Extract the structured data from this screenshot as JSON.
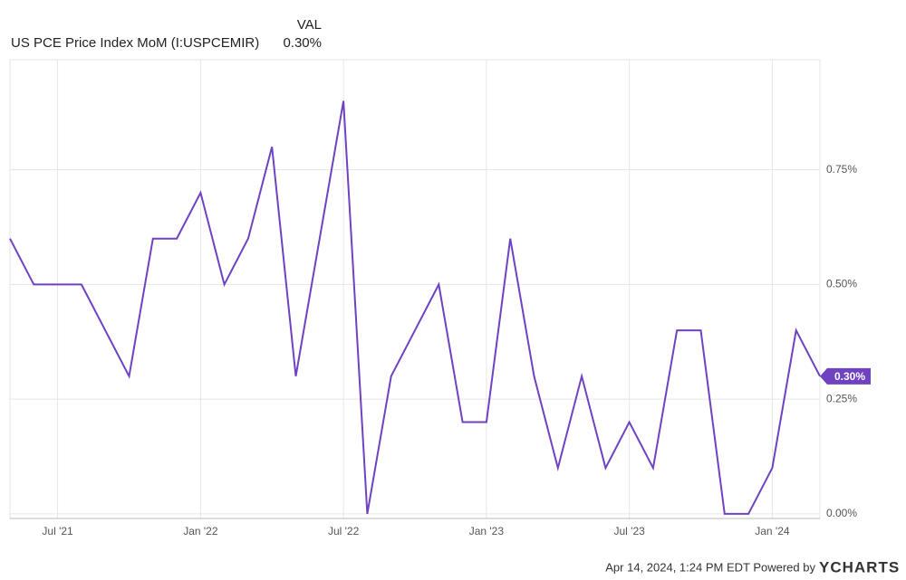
{
  "chart_data": {
    "type": "line",
    "value_header": "VAL",
    "latest_value_label": "0.30%",
    "x": [
      "2021-05",
      "2021-06",
      "2021-07",
      "2021-08",
      "2021-09",
      "2021-10",
      "2021-11",
      "2021-12",
      "2022-01",
      "2022-02",
      "2022-03",
      "2022-04",
      "2022-05",
      "2022-06",
      "2022-07",
      "2022-08",
      "2022-09",
      "2022-10",
      "2022-11",
      "2022-12",
      "2023-01",
      "2023-02",
      "2023-03",
      "2023-04",
      "2023-05",
      "2023-06",
      "2023-07",
      "2023-08",
      "2023-09",
      "2023-10",
      "2023-11",
      "2023-12",
      "2024-01",
      "2024-02",
      "2024-03"
    ],
    "series": [
      {
        "name": "US PCE Price Index MoM (I:USPCEMIR)",
        "color": "#6e42c1",
        "values": [
          0.6,
          0.5,
          0.5,
          0.5,
          0.4,
          0.3,
          0.6,
          0.6,
          0.7,
          0.5,
          0.6,
          0.8,
          0.3,
          0.6,
          0.9,
          0.0,
          0.3,
          0.4,
          0.5,
          0.2,
          0.2,
          0.6,
          0.3,
          0.1,
          0.3,
          0.1,
          0.2,
          0.1,
          0.4,
          0.4,
          0.0,
          0.0,
          0.1,
          0.4,
          0.3
        ]
      }
    ],
    "xlim": [
      "2021-05",
      "2024-03"
    ],
    "xticks": [
      {
        "value": "2021-07",
        "label": "Jul '21"
      },
      {
        "value": "2022-01",
        "label": "Jan '22"
      },
      {
        "value": "2022-07",
        "label": "Jul '22"
      },
      {
        "value": "2023-01",
        "label": "Jan '23"
      },
      {
        "value": "2023-07",
        "label": "Jul '23"
      },
      {
        "value": "2024-01",
        "label": "Jan '24"
      }
    ],
    "ylim": [
      -0.01,
      0.99
    ],
    "yticks": [
      {
        "value": 0,
        "label": "0.00%"
      },
      {
        "value": 0.25,
        "label": "0.25%"
      },
      {
        "value": 0.5,
        "label": "0.50%"
      },
      {
        "value": 0.75,
        "label": "0.75%"
      }
    ],
    "grid": true,
    "footer": "Apr 14, 2024, 1:24 PM EDT Powered by",
    "brand": "YCHARTS"
  }
}
